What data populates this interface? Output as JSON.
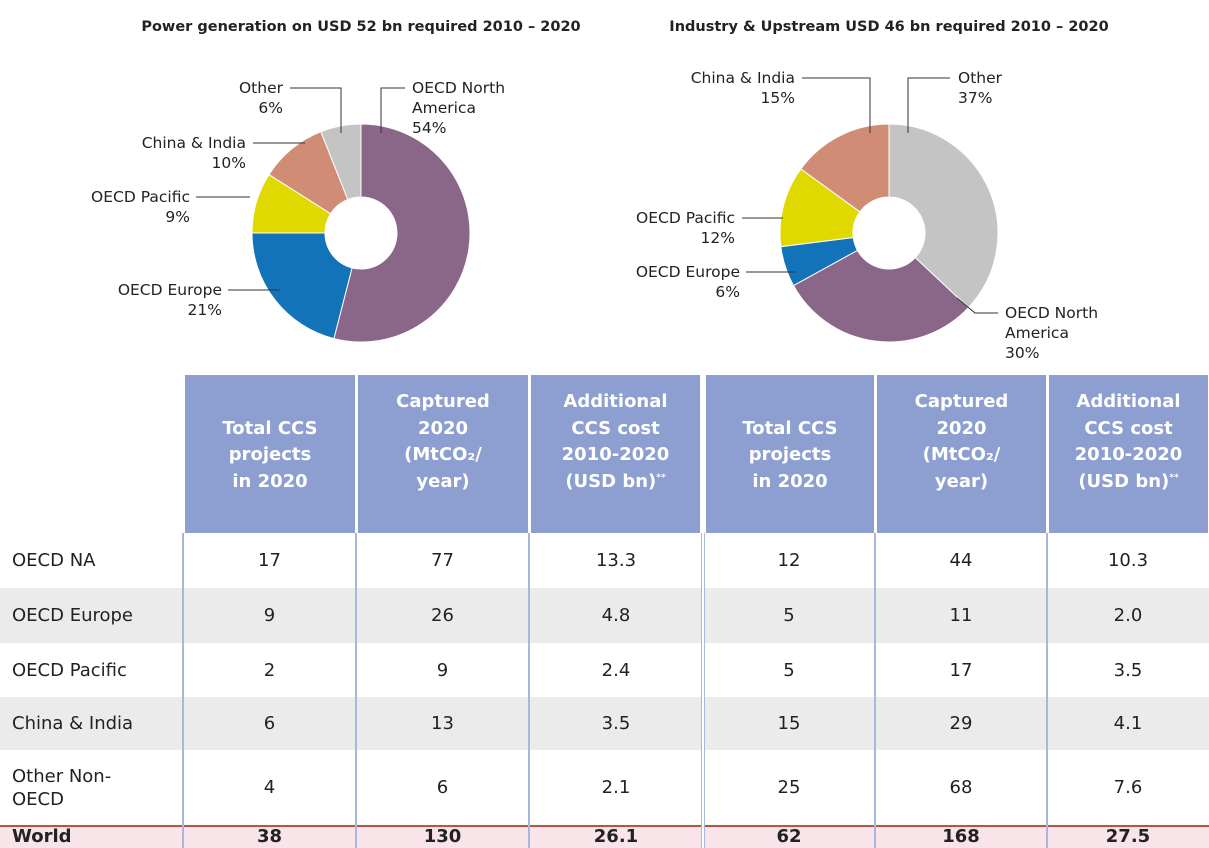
{
  "chart_data": [
    {
      "type": "pie",
      "title": "Power generation on USD 52 bn required 2010 – 2020",
      "categories": [
        "OECD North America",
        "OECD Europe",
        "OECD Pacific",
        "China & India",
        "Other"
      ],
      "values": [
        54,
        21,
        9,
        10,
        6
      ],
      "value_labels": [
        "54%",
        "21%",
        "9%",
        "10%",
        "6%"
      ],
      "colors": [
        "#8a6688",
        "#1273b8",
        "#e0d900",
        "#d08c74",
        "#c4c4c4"
      ]
    },
    {
      "type": "pie",
      "title": "Industry & Upstream USD 46 bn required 2010 – 2020",
      "categories": [
        "Other",
        "OECD North America",
        "OECD Europe",
        "OECD Pacific",
        "China & India"
      ],
      "values": [
        37,
        30,
        6,
        12,
        15
      ],
      "value_labels": [
        "37%",
        "30%",
        "6%",
        "12%",
        "15%"
      ],
      "colors": [
        "#c4c4c4",
        "#8a6688",
        "#1273b8",
        "#e0d900",
        "#d08c74"
      ]
    }
  ],
  "table": {
    "columns": [
      {
        "lines": [
          "Total CCS",
          "projects",
          "in 2020"
        ]
      },
      {
        "lines": [
          "Captured",
          "2020",
          "(MtCO₂/",
          "year)"
        ]
      },
      {
        "lines": [
          "Additional",
          "CCS cost",
          "2010-2020",
          "(USD bn)"
        ],
        "note": "**"
      },
      {
        "lines": [
          "Total CCS",
          "projects",
          "in 2020"
        ]
      },
      {
        "lines": [
          "Captured",
          "2020",
          "(MtCO₂/",
          "year)"
        ]
      },
      {
        "lines": [
          "Additional",
          "CCS cost",
          "2010-2020",
          "(USD bn)"
        ],
        "note": "**"
      }
    ],
    "rows": [
      {
        "label": "OECD NA",
        "values": [
          "17",
          "77",
          "13.3",
          "12",
          "44",
          "10.3"
        ]
      },
      {
        "label": "OECD Europe",
        "values": [
          "9",
          "26",
          "4.8",
          "5",
          "11",
          "2.0"
        ]
      },
      {
        "label": "OECD Pacific",
        "values": [
          "2",
          "9",
          "2.4",
          "5",
          "17",
          "3.5"
        ]
      },
      {
        "label": "China & India",
        "values": [
          "6",
          "13",
          "3.5",
          "15",
          "29",
          "4.1"
        ]
      },
      {
        "label": "Other Non-OECD",
        "values": [
          "4",
          "6",
          "2.1",
          "25",
          "68",
          "7.6"
        ]
      },
      {
        "label": "World",
        "values": [
          "38",
          "130",
          "26.1",
          "62",
          "168",
          "27.5"
        ]
      }
    ]
  }
}
